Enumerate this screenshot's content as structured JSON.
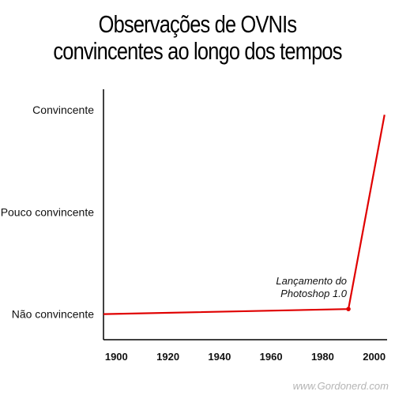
{
  "chart_data": {
    "type": "line",
    "title_lines": [
      "Observações de OVNIs",
      "convincentes ao longo dos tempos"
    ],
    "y_categories": [
      "Não convincente",
      "Pouco convincente",
      "Convincente"
    ],
    "x_ticks": [
      1900,
      1920,
      1940,
      1960,
      1980,
      2000
    ],
    "xlim": [
      1895,
      2005
    ],
    "ylim": [
      -0.25,
      2.2
    ],
    "series": [
      {
        "color": "#e00000",
        "x": [
          1895,
          1990,
          2004
        ],
        "y": [
          0,
          0.05,
          1.95
        ]
      }
    ],
    "annotation": {
      "lines": [
        "Lançamento do",
        "Photoshop 1.0"
      ],
      "x": 1990,
      "y": 0.05
    }
  },
  "watermark": "www.Gordonerd.com"
}
